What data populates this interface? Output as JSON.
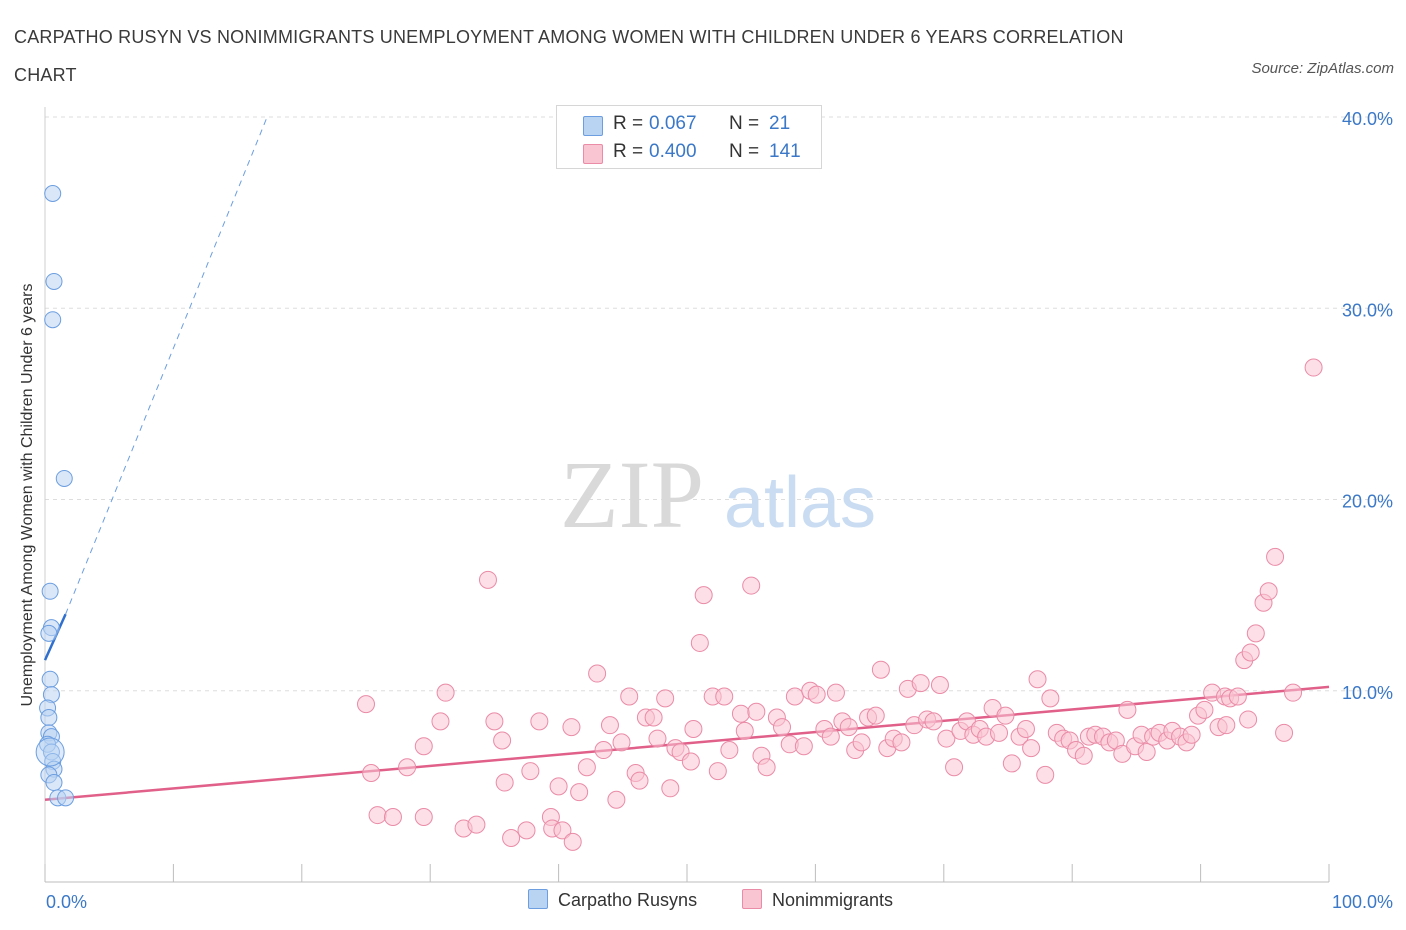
{
  "title": "CARPATHO RUSYN VS NONIMMIGRANTS UNEMPLOYMENT AMONG WOMEN WITH CHILDREN UNDER 6 YEARS CORRELATION CHART",
  "source": "Source: ZipAtlas.com",
  "watermark": {
    "zip": "ZIP",
    "atlas": "atlas"
  },
  "stats": [
    {
      "r_label": "R =",
      "r": "0.067",
      "n_label": "N =",
      "n": "21",
      "color": "#6c9ee0"
    },
    {
      "r_label": "R =",
      "r": "0.400",
      "n_label": "N =",
      "n": "141",
      "color": "#ea8ba7"
    }
  ],
  "legend": [
    {
      "label": "Carpatho Rusyns",
      "color": "#6c9ee0"
    },
    {
      "label": "Nonimmigrants",
      "color": "#ea8ba7"
    }
  ],
  "chart_data": {
    "type": "scatter",
    "title": "CARPATHO RUSYN VS NONIMMIGRANTS UNEMPLOYMENT AMONG WOMEN WITH CHILDREN UNDER 6 YEARS CORRELATION CHART",
    "xlabel": "",
    "ylabel": "Unemployment Among Women with Children Under 6 years",
    "xlim": [
      0,
      100
    ],
    "ylim": [
      0,
      40
    ],
    "x_tick_labels": [
      "0.0%",
      "100.0%"
    ],
    "y_ticks": [
      10,
      20,
      30,
      40
    ],
    "y_tick_labels": [
      "10.0%",
      "20.0%",
      "30.0%",
      "40.0%"
    ],
    "grid": "horizontal dashed",
    "legend_position": "bottom-center",
    "series": [
      {
        "name": "Carpatho Rusyns",
        "color": "#6c9ee0",
        "fill": "#b9d3f3",
        "points": [
          [
            0.6,
            36
          ],
          [
            0.7,
            31.4
          ],
          [
            0.6,
            29.4
          ],
          [
            1.5,
            21.1
          ],
          [
            0.4,
            15.2
          ],
          [
            0.5,
            13.3
          ],
          [
            0.3,
            13.0
          ],
          [
            0.4,
            10.6
          ],
          [
            0.5,
            9.8
          ],
          [
            0.2,
            9.1
          ],
          [
            0.3,
            8.6
          ],
          [
            0.3,
            7.8
          ],
          [
            0.5,
            7.6
          ],
          [
            0.2,
            7.2
          ],
          [
            0.5,
            6.8
          ],
          [
            0.6,
            6.3
          ],
          [
            0.7,
            5.9
          ],
          [
            0.3,
            5.6
          ],
          [
            0.7,
            5.2
          ],
          [
            1.0,
            4.4
          ],
          [
            1.6,
            4.4
          ]
        ],
        "trend": {
          "solid": [
            [
              0,
              11.6
            ],
            [
              1.6,
              14.0
            ]
          ],
          "dashed": [
            [
              1.6,
              14.0
            ],
            [
              17.3,
              40
            ]
          ]
        }
      },
      {
        "name": "Nonimmigrants",
        "color": "#ea8ba7",
        "fill": "#f9c5d3",
        "points": [
          [
            25.0,
            9.3
          ],
          [
            25.4,
            5.7
          ],
          [
            25.9,
            3.5
          ],
          [
            27.1,
            3.4
          ],
          [
            28.2,
            6.0
          ],
          [
            29.5,
            3.4
          ],
          [
            29.5,
            7.1
          ],
          [
            30.8,
            8.4
          ],
          [
            31.2,
            9.9
          ],
          [
            32.6,
            2.8
          ],
          [
            33.6,
            3.0
          ],
          [
            34.5,
            15.8
          ],
          [
            35.0,
            8.4
          ],
          [
            35.6,
            7.4
          ],
          [
            35.8,
            5.2
          ],
          [
            36.3,
            2.3
          ],
          [
            37.5,
            2.7
          ],
          [
            37.8,
            5.8
          ],
          [
            38.5,
            8.4
          ],
          [
            39.4,
            3.4
          ],
          [
            39.5,
            2.8
          ],
          [
            40.0,
            5.0
          ],
          [
            40.3,
            2.7
          ],
          [
            41.0,
            8.1
          ],
          [
            41.1,
            2.1
          ],
          [
            41.6,
            4.7
          ],
          [
            42.2,
            6.0
          ],
          [
            43.0,
            10.9
          ],
          [
            43.5,
            6.9
          ],
          [
            44.0,
            8.2
          ],
          [
            44.5,
            4.3
          ],
          [
            44.9,
            7.3
          ],
          [
            45.5,
            9.7
          ],
          [
            46.0,
            5.7
          ],
          [
            46.3,
            5.3
          ],
          [
            46.8,
            8.6
          ],
          [
            47.4,
            8.6
          ],
          [
            47.7,
            7.5
          ],
          [
            48.3,
            9.6
          ],
          [
            48.7,
            4.9
          ],
          [
            49.1,
            7.0
          ],
          [
            49.5,
            6.8
          ],
          [
            50.3,
            6.3
          ],
          [
            50.5,
            8.0
          ],
          [
            51.0,
            12.5
          ],
          [
            51.3,
            15.0
          ],
          [
            52.0,
            9.7
          ],
          [
            52.4,
            5.8
          ],
          [
            52.9,
            9.7
          ],
          [
            53.3,
            6.9
          ],
          [
            54.2,
            8.8
          ],
          [
            54.5,
            7.9
          ],
          [
            55.0,
            15.5
          ],
          [
            55.4,
            8.9
          ],
          [
            55.8,
            6.6
          ],
          [
            56.2,
            6.0
          ],
          [
            57.0,
            8.6
          ],
          [
            57.4,
            8.1
          ],
          [
            58.0,
            7.2
          ],
          [
            58.4,
            9.7
          ],
          [
            59.1,
            7.1
          ],
          [
            59.6,
            10.0
          ],
          [
            60.1,
            9.8
          ],
          [
            60.7,
            8.0
          ],
          [
            61.2,
            7.6
          ],
          [
            61.6,
            9.9
          ],
          [
            62.1,
            8.4
          ],
          [
            62.6,
            8.1
          ],
          [
            63.1,
            6.9
          ],
          [
            63.6,
            7.3
          ],
          [
            64.1,
            8.6
          ],
          [
            64.7,
            8.7
          ],
          [
            65.1,
            11.1
          ],
          [
            65.6,
            7.0
          ],
          [
            66.1,
            7.5
          ],
          [
            66.7,
            7.3
          ],
          [
            67.2,
            10.1
          ],
          [
            67.7,
            8.2
          ],
          [
            68.2,
            10.4
          ],
          [
            68.7,
            8.5
          ],
          [
            69.2,
            8.4
          ],
          [
            69.7,
            10.3
          ],
          [
            70.2,
            7.5
          ],
          [
            70.8,
            6.0
          ],
          [
            71.3,
            7.9
          ],
          [
            71.8,
            8.4
          ],
          [
            72.3,
            7.7
          ],
          [
            72.8,
            8.0
          ],
          [
            73.3,
            7.6
          ],
          [
            73.8,
            9.1
          ],
          [
            74.3,
            7.8
          ],
          [
            74.8,
            8.7
          ],
          [
            75.3,
            6.2
          ],
          [
            75.9,
            7.6
          ],
          [
            76.4,
            8.0
          ],
          [
            76.8,
            7.0
          ],
          [
            77.3,
            10.6
          ],
          [
            77.9,
            5.6
          ],
          [
            78.3,
            9.6
          ],
          [
            78.8,
            7.8
          ],
          [
            79.3,
            7.5
          ],
          [
            79.8,
            7.4
          ],
          [
            80.3,
            6.9
          ],
          [
            80.9,
            6.6
          ],
          [
            81.3,
            7.6
          ],
          [
            81.8,
            7.7
          ],
          [
            82.4,
            7.6
          ],
          [
            82.9,
            7.3
          ],
          [
            83.4,
            7.4
          ],
          [
            83.9,
            6.7
          ],
          [
            84.3,
            9.0
          ],
          [
            84.9,
            7.1
          ],
          [
            85.4,
            7.7
          ],
          [
            85.8,
            6.8
          ],
          [
            86.3,
            7.6
          ],
          [
            86.8,
            7.8
          ],
          [
            87.4,
            7.4
          ],
          [
            87.8,
            7.9
          ],
          [
            88.4,
            7.6
          ],
          [
            88.9,
            7.3
          ],
          [
            89.3,
            7.7
          ],
          [
            89.8,
            8.7
          ],
          [
            90.3,
            9.0
          ],
          [
            90.9,
            9.9
          ],
          [
            91.4,
            8.1
          ],
          [
            91.9,
            9.7
          ],
          [
            92.3,
            9.6
          ],
          [
            92.9,
            9.7
          ],
          [
            93.4,
            11.6
          ],
          [
            93.9,
            12.0
          ],
          [
            94.3,
            13.0
          ],
          [
            94.9,
            14.6
          ],
          [
            95.3,
            15.2
          ],
          [
            95.8,
            17.0
          ],
          [
            98.8,
            26.9
          ],
          [
            97.2,
            9.9
          ],
          [
            96.5,
            7.8
          ],
          [
            93.7,
            8.5
          ],
          [
            92.0,
            8.2
          ]
        ],
        "trend": {
          "solid": [
            [
              0,
              4.3
            ],
            [
              100,
              10.2
            ]
          ]
        }
      }
    ]
  }
}
